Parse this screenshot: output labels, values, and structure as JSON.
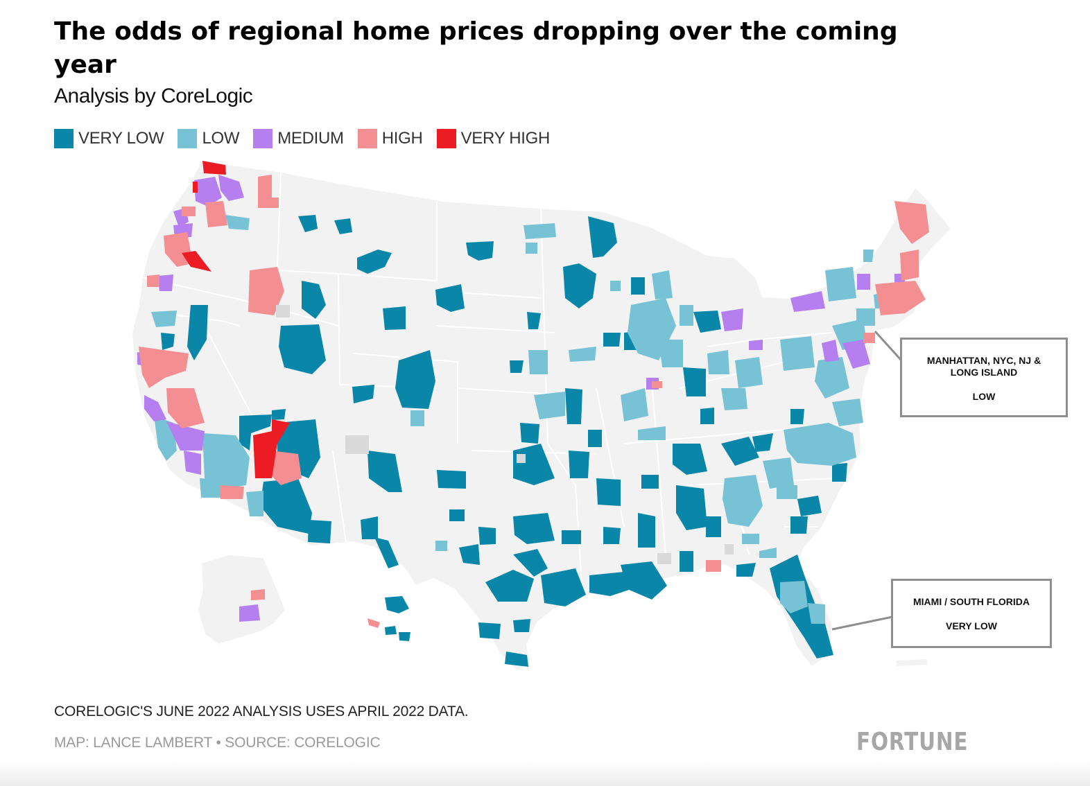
{
  "header": {
    "title": "The odds of regional home prices dropping over the coming year",
    "subtitle": "Analysis by CoreLogic"
  },
  "legend": [
    {
      "label": "VERY LOW",
      "color": "#0a86a8"
    },
    {
      "label": "LOW",
      "color": "#78c2d6"
    },
    {
      "label": "MEDIUM",
      "color": "#b57ff0"
    },
    {
      "label": "HIGH",
      "color": "#f38f93"
    },
    {
      "label": "VERY HIGH",
      "color": "#ec1c24"
    }
  ],
  "map": {
    "base_color": "#f2f2f2",
    "border_color": "#ffffff",
    "no_data_color": "#d9d9d9"
  },
  "callouts": [
    {
      "region": "MANHATTAN, NYC, NJ & LONG ISLAND",
      "risk": "LOW"
    },
    {
      "region": "MIAMI / SOUTH FLORIDA",
      "risk": "VERY LOW"
    }
  ],
  "footer": {
    "note": "CORELOGIC'S JUNE 2022 ANALYSIS USES APRIL 2022 DATA.",
    "credit": "MAP: LANCE LAMBERT • SOURCE: CORELOGIC",
    "brand": "FORTUNE"
  }
}
